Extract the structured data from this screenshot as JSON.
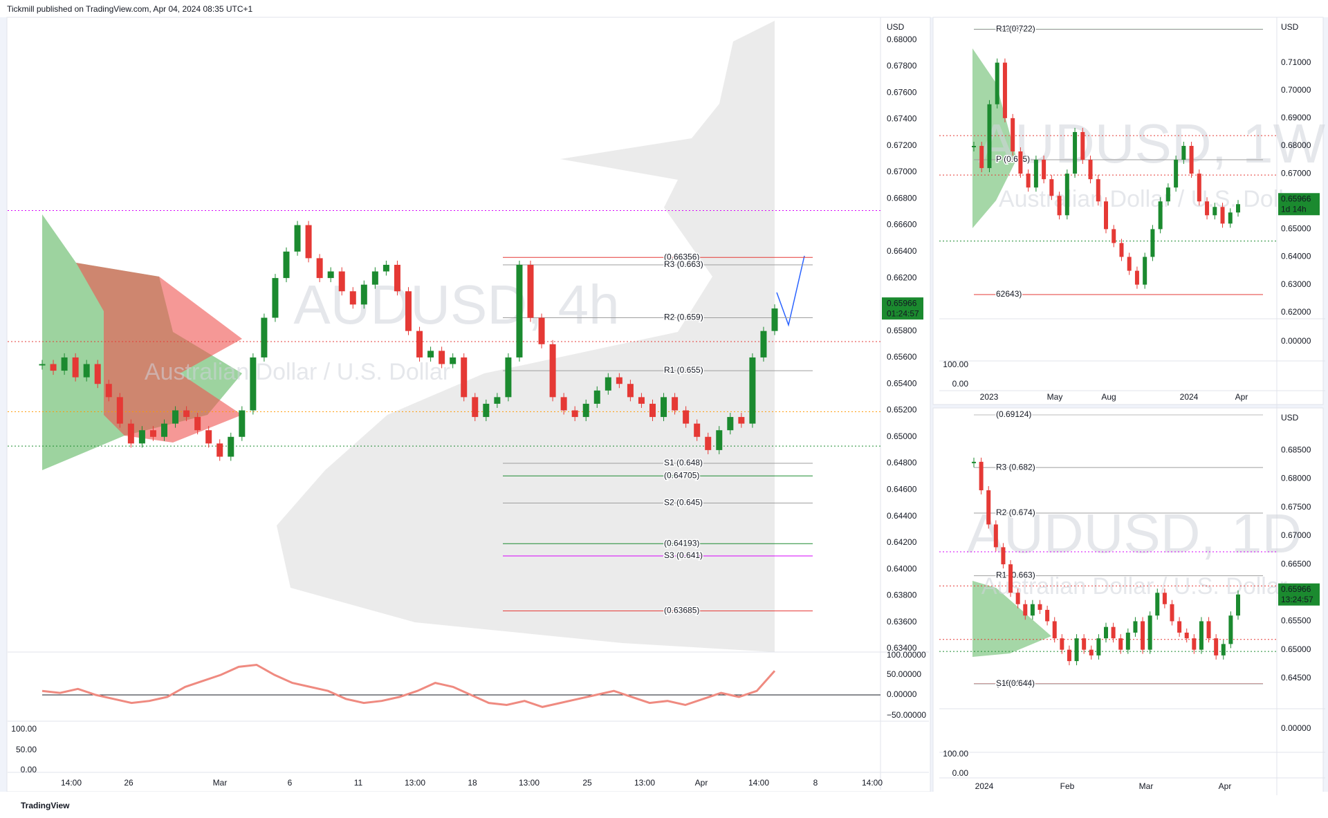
{
  "header": {
    "publisher": "Tickmill published on TradingView.com, Apr 04, 2024 08:35 UTC+1"
  },
  "footer": {
    "brand": "TradingView"
  },
  "panels": [
    {
      "symbol": "AUDUSD, 4h",
      "description": "Australian Dollar / U.S. Dollar",
      "currency": "USD",
      "price_labels": [
        "0.68000",
        "0.67800",
        "0.67600",
        "0.67400",
        "0.67200",
        "0.67000",
        "0.66800",
        "0.66600",
        "0.66400",
        "0.66200",
        "0.65800",
        "0.65600",
        "0.65400",
        "0.65200",
        "0.65000",
        "0.64800",
        "0.64600",
        "0.64400",
        "0.64200",
        "0.64000",
        "0.63800",
        "0.63600",
        "0.63400"
      ],
      "osc_labels": [
        "100.00000",
        "50.00000",
        "0.00000",
        "−50.00000"
      ],
      "stoch_labels": [
        "100.00",
        "50.00",
        "0.00"
      ],
      "time_labels": [
        "14:00",
        "26",
        "Mar",
        "6",
        "11",
        "13:00",
        "18",
        "13:00",
        "25",
        "13:00",
        "Apr",
        "14:00",
        "8",
        "14:00"
      ],
      "last_price": "0.65966",
      "countdown": "01:24:57",
      "levels": [
        {
          "label": "(0.66356)",
          "price": 0.66356,
          "color": "#e53935"
        },
        {
          "label": "R3 (0.663)",
          "price": 0.663,
          "color": "#9e9e9e"
        },
        {
          "label": "R2 (0.659)",
          "price": 0.659,
          "color": "#9e9e9e"
        },
        {
          "label": "R1 (0.655)",
          "price": 0.655,
          "color": "#9e9e9e"
        },
        {
          "label": "S1 (0.648)",
          "price": 0.648,
          "color": "#9e9e9e"
        },
        {
          "label": "(0.64705)",
          "price": 0.64705,
          "color": "#1b8a2f"
        },
        {
          "label": "S2 (0.645)",
          "price": 0.645,
          "color": "#9e9e9e"
        },
        {
          "label": "(0.64193)",
          "price": 0.64193,
          "color": "#1b8a2f"
        },
        {
          "label": "S3 (0.641)",
          "price": 0.641,
          "color": "#d500f9"
        },
        {
          "label": "(0.63685)",
          "price": 0.63685,
          "color": "#e53935"
        }
      ],
      "lines": [
        {
          "price": 0.6572,
          "color": "#e53935"
        },
        {
          "price": 0.6519,
          "color": "#ff9800"
        },
        {
          "price": 0.6493,
          "color": "#1b8a2f"
        },
        {
          "price": 0.6671,
          "color": "#d500f9"
        }
      ],
      "closes": [
        0.6555,
        0.655,
        0.656,
        0.6545,
        0.6555,
        0.654,
        0.653,
        0.651,
        0.6495,
        0.6505,
        0.65,
        0.651,
        0.652,
        0.6515,
        0.6505,
        0.6495,
        0.6485,
        0.65,
        0.652,
        0.656,
        0.659,
        0.662,
        0.664,
        0.666,
        0.6635,
        0.662,
        0.6625,
        0.661,
        0.66,
        0.6615,
        0.6625,
        0.663,
        0.661,
        0.658,
        0.656,
        0.6565,
        0.6555,
        0.656,
        0.653,
        0.6515,
        0.6525,
        0.653,
        0.656,
        0.663,
        0.659,
        0.657,
        0.653,
        0.652,
        0.6515,
        0.6525,
        0.6535,
        0.6545,
        0.654,
        0.653,
        0.6525,
        0.6515,
        0.653,
        0.652,
        0.651,
        0.65,
        0.649,
        0.6505,
        0.6515,
        0.651,
        0.656,
        0.658,
        0.6597
      ],
      "oscillator": [
        10,
        5,
        15,
        0,
        -10,
        -20,
        -15,
        -5,
        20,
        35,
        50,
        70,
        75,
        50,
        30,
        20,
        10,
        -10,
        -20,
        -15,
        -5,
        10,
        30,
        20,
        0,
        -20,
        -25,
        -15,
        -30,
        -20,
        -10,
        0,
        10,
        -5,
        -20,
        -15,
        -25,
        -10,
        5,
        -5,
        10,
        60
      ]
    },
    {
      "symbol": "AUDUSD, 1W",
      "description": "Australian Dollar / U.S. Dollar",
      "currency": "USD",
      "price_labels": [
        "0.71000",
        "0.70000",
        "0.69000",
        "0.68000",
        "0.67000",
        "0.65000",
        "0.64000",
        "0.63000",
        "0.62000"
      ],
      "osc_labels": [
        "0.00000"
      ],
      "stoch_labels": [
        "100.00",
        "0.00"
      ],
      "time_labels": [
        "2023",
        "May",
        "Aug",
        "2024",
        "Apr"
      ],
      "last_price": "0.65966",
      "countdown": "1d 14h",
      "levels": [
        {
          "label": "72202)",
          "price": 0.72202,
          "color": "#1b8a2f"
        },
        {
          "label": "R1 (0.722)",
          "price": 0.722,
          "color": "#9e9e9e"
        },
        {
          "label": "P (0.675)",
          "price": 0.675,
          "color": "#9e9e9e"
        },
        {
          "label": "62643)",
          "price": 0.62643,
          "color": "#e53935"
        }
      ],
      "lines": [
        {
          "price": 0.6837,
          "color": "#e53935"
        },
        {
          "price": 0.6695,
          "color": "#e53935"
        },
        {
          "price": 0.6457,
          "color": "#1b8a2f"
        }
      ],
      "closes": [
        0.68,
        0.672,
        0.695,
        0.71,
        0.69,
        0.678,
        0.67,
        0.665,
        0.675,
        0.668,
        0.662,
        0.655,
        0.67,
        0.685,
        0.675,
        0.668,
        0.66,
        0.65,
        0.645,
        0.64,
        0.635,
        0.63,
        0.64,
        0.65,
        0.66,
        0.665,
        0.675,
        0.68,
        0.67,
        0.66,
        0.655,
        0.658,
        0.652,
        0.656,
        0.659
      ]
    },
    {
      "symbol": "AUDUSD, 1D",
      "description": "Australian Dollar / U.S. Dollar",
      "currency": "USD",
      "price_labels": [
        "0.68500",
        "0.68000",
        "0.67500",
        "0.67000",
        "0.66500",
        "0.65500",
        "0.65000",
        "0.64500"
      ],
      "osc_labels": [
        "0.00000"
      ],
      "stoch_labels": [
        "100.00",
        "0.00"
      ],
      "time_labels": [
        "2024",
        "Feb",
        "Mar",
        "Apr"
      ],
      "last_price": "0.65966",
      "countdown": "13:24:57",
      "levels": [
        {
          "label": "(0.69124)",
          "price": 0.69124,
          "color": "#bdbdbd"
        },
        {
          "label": "R3 (0.682)",
          "price": 0.682,
          "color": "#9e9e9e"
        },
        {
          "label": "R2 (0.674)",
          "price": 0.674,
          "color": "#9e9e9e"
        },
        {
          "label": "R1 (0.663)",
          "price": 0.663,
          "color": "#9e9e9e"
        },
        {
          "label": "(0.64404)",
          "price": 0.64404,
          "color": "#e53935"
        },
        {
          "label": "S1 (0.644)",
          "price": 0.644,
          "color": "#9e9e9e"
        }
      ],
      "lines": [
        {
          "price": 0.6612,
          "color": "#e53935"
        },
        {
          "price": 0.6518,
          "color": "#e53935"
        },
        {
          "price": 0.6497,
          "color": "#1b8a2f"
        },
        {
          "price": 0.6672,
          "color": "#d500f9"
        }
      ],
      "closes": [
        0.683,
        0.678,
        0.672,
        0.668,
        0.665,
        0.66,
        0.658,
        0.656,
        0.658,
        0.657,
        0.655,
        0.652,
        0.65,
        0.648,
        0.652,
        0.65,
        0.649,
        0.652,
        0.654,
        0.652,
        0.65,
        0.653,
        0.655,
        0.65,
        0.656,
        0.66,
        0.658,
        0.655,
        0.653,
        0.652,
        0.65,
        0.655,
        0.652,
        0.649,
        0.651,
        0.656,
        0.6597
      ]
    }
  ]
}
